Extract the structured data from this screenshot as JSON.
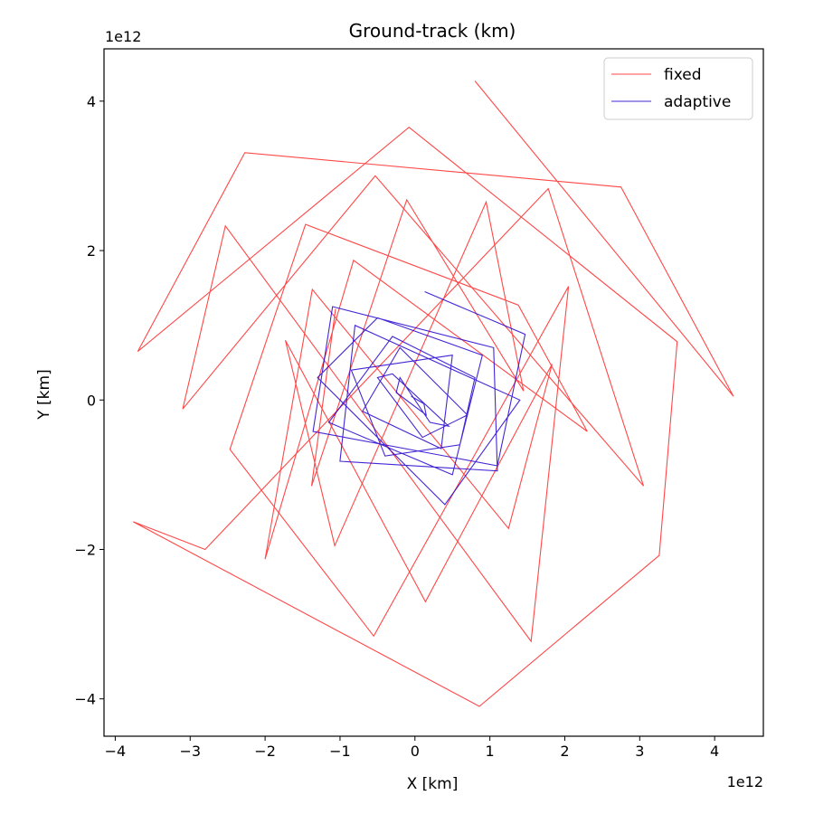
{
  "chart_data": {
    "type": "line",
    "title": "Ground-track (km)",
    "xlabel": "X [km]",
    "ylabel": "Y [km]",
    "x_offset_label": "1e12",
    "y_offset_label": "1e12",
    "xlim": [
      -4.15,
      4.65
    ],
    "ylim": [
      -4.5,
      4.7
    ],
    "xticks": [
      -4,
      -3,
      -2,
      -1,
      0,
      1,
      2,
      3,
      4
    ],
    "yticks": [
      -4,
      -2,
      0,
      2,
      4
    ],
    "xtick_labels": [
      "−4",
      "−3",
      "−2",
      "−1",
      "0",
      "1",
      "2",
      "3",
      "4"
    ],
    "ytick_labels": [
      "−4",
      "−2",
      "0",
      "2",
      "4"
    ],
    "grid": false,
    "legend_position": "top-right",
    "series": [
      {
        "name": "fixed",
        "color": "#ff0000",
        "opacity": 0.72,
        "x": [
          0.8,
          4.25,
          2.75,
          -2.27,
          -3.7,
          -0.08,
          3.5,
          3.26,
          0.86,
          -3.76,
          -2.8,
          1.78,
          3.05,
          -0.53,
          -3.1,
          -2.53,
          1.55,
          2.05,
          -0.55,
          -2.47,
          -1.46,
          1.38,
          2.3,
          -0.82,
          -2.0,
          -1.37,
          1.25,
          1.83,
          0.14,
          -1.73,
          -1.07,
          0.95,
          1.45,
          -0.11,
          -1.38,
          -1.06
        ],
        "y": [
          4.27,
          0.05,
          2.85,
          3.31,
          0.65,
          3.65,
          0.78,
          -2.08,
          -4.1,
          -1.63,
          -2.0,
          2.83,
          -1.15,
          3.0,
          -0.12,
          2.33,
          -3.23,
          1.52,
          -3.16,
          -0.66,
          2.35,
          1.27,
          -0.42,
          1.87,
          -2.13,
          1.48,
          -1.72,
          0.48,
          -2.7,
          0.8,
          -1.95,
          2.65,
          0.12,
          2.68,
          -1.15,
          1.22
        ]
      },
      {
        "name": "adaptive",
        "color": "#2200cc",
        "opacity": 0.85,
        "x": [
          0.13,
          1.47,
          1.1,
          -1.36,
          -1.1,
          1.05,
          1.1,
          -1.0,
          -0.8,
          1.4,
          0.4,
          -1.3,
          -0.5,
          0.9,
          0.5,
          -1.15,
          -0.3,
          0.8,
          0.6,
          -0.4,
          -0.85,
          0.5,
          0.35,
          -0.7,
          -0.2,
          0.7,
          0.1,
          -0.5,
          -0.3,
          0.45,
          0.2,
          -0.2,
          -0.25,
          0.15,
          0.12,
          -0.05
        ],
        "y": [
          1.45,
          0.88,
          -0.88,
          -0.42,
          1.25,
          0.7,
          -0.95,
          -0.82,
          1.0,
          0.0,
          -1.4,
          0.3,
          1.1,
          0.6,
          -1.0,
          -0.3,
          0.85,
          0.3,
          -0.6,
          -0.75,
          0.4,
          0.6,
          -0.65,
          -0.15,
          0.7,
          -0.2,
          -0.5,
          0.3,
          0.35,
          -0.35,
          -0.3,
          0.3,
          0.1,
          -0.2,
          -0.05,
          0.05
        ]
      }
    ]
  }
}
